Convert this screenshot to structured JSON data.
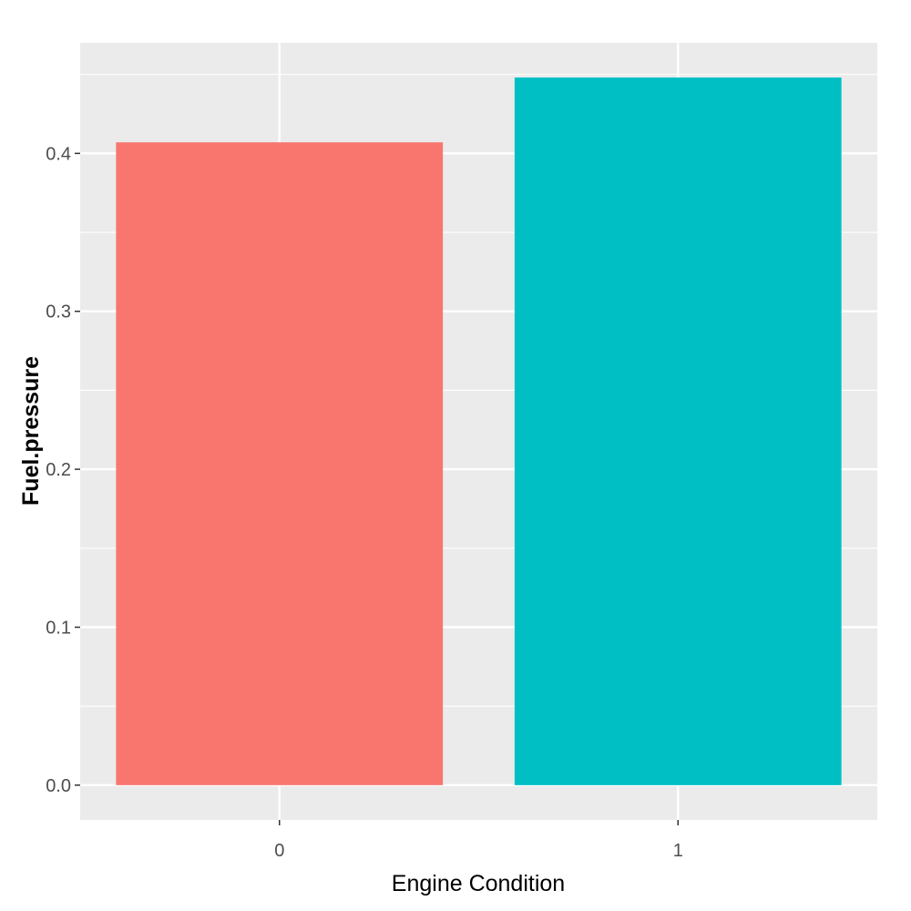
{
  "chart_data": {
    "type": "bar",
    "title": "",
    "xlabel": "Engine Condition",
    "ylabel": "Fuel.pressure",
    "categories": [
      "0",
      "1"
    ],
    "values": [
      0.407,
      0.448
    ],
    "ylim": [
      -0.022,
      0.47
    ],
    "yticks": [
      0.0,
      0.1,
      0.2,
      0.3,
      0.4
    ],
    "ytick_labels": [
      "0.0",
      "0.1",
      "0.2",
      "0.3",
      "0.4"
    ],
    "grid": true,
    "legend": "none",
    "colors": [
      "#F8766D",
      "#00BFC4"
    ],
    "panel_background": "#EBEBEB",
    "gridline_color": "#FFFFFF"
  }
}
